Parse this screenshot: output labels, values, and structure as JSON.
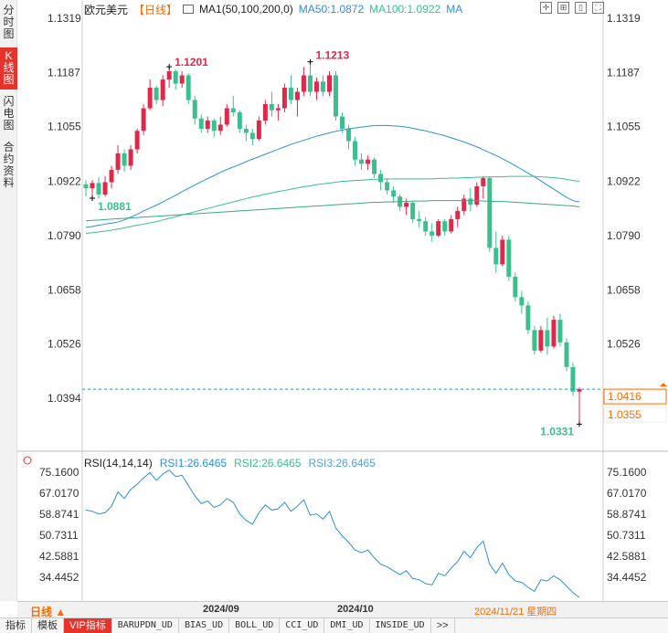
{
  "side_tabs": [
    {
      "label": "分时图",
      "active": false
    },
    {
      "label": "K线图",
      "active": true
    },
    {
      "label": "闪电图",
      "active": false
    },
    {
      "label": "合约资料",
      "active": false
    }
  ],
  "header": {
    "title": "欧元美元",
    "period": "【日线】",
    "ma1": "MA1(50,100,200,0)",
    "ma50": "MA50:1.0872",
    "ma100": "MA100:1.0922",
    "ma_more": "MA"
  },
  "price_axis": {
    "ticks": [
      "1.1319",
      "1.1187",
      "1.1055",
      "1.0922",
      "1.0790",
      "1.0658",
      "1.0526",
      "1.0394"
    ],
    "current_price": "1.0416",
    "cursor_price": "1.0355"
  },
  "annotations": {
    "high1": "1.1201",
    "high2": "1.1213",
    "low_left": "1.0881",
    "low_right": "1.0331"
  },
  "rsi": {
    "name": "RSI(14,14,14)",
    "rsi1": "RSI1:26.6465",
    "rsi2": "RSI2:26.6465",
    "rsi3": "RSI3:26.6465",
    "ticks": [
      "75.1600",
      "67.0170",
      "58.8741",
      "50.7311",
      "42.5881",
      "34.4452"
    ]
  },
  "time_axis": {
    "period": "日线",
    "labels": [
      "2024/09",
      "2024/10"
    ],
    "cursor_date": "2024/11/21 星期四"
  },
  "indicator_tabs": [
    "指标",
    "模板",
    "VIP指标",
    "BARUPDN_UD",
    "BIAS_UD",
    "BOLL_UD",
    "CCI_UD",
    "DMI_UD",
    "INSIDE_UD",
    ">>"
  ],
  "colors": {
    "up": "#e0294a",
    "down": "#3cbf8e",
    "ma50": "#2f8fd8",
    "ma100": "#3cbf8e",
    "accent": "#ff6a00"
  },
  "chart_data": {
    "type": "candlestick",
    "ylim": [
      1.0331,
      1.1319
    ],
    "candles": [
      {
        "o": 1.0915,
        "h": 1.0925,
        "l": 1.0885,
        "c": 1.0905
      },
      {
        "o": 1.0905,
        "h": 1.0925,
        "l": 1.0881,
        "c": 1.0918
      },
      {
        "o": 1.0918,
        "h": 1.0932,
        "l": 1.088,
        "c": 1.089
      },
      {
        "o": 1.089,
        "h": 1.0935,
        "l": 1.0885,
        "c": 1.092
      },
      {
        "o": 1.092,
        "h": 1.096,
        "l": 1.0905,
        "c": 1.095
      },
      {
        "o": 1.095,
        "h": 1.101,
        "l": 1.094,
        "c": 1.099
      },
      {
        "o": 1.099,
        "h": 1.1,
        "l": 1.0945,
        "c": 1.096
      },
      {
        "o": 1.096,
        "h": 1.101,
        "l": 1.095,
        "c": 1.1
      },
      {
        "o": 1.1,
        "h": 1.105,
        "l": 1.099,
        "c": 1.1045
      },
      {
        "o": 1.1045,
        "h": 1.111,
        "l": 1.1035,
        "c": 1.11
      },
      {
        "o": 1.11,
        "h": 1.117,
        "l": 1.1095,
        "c": 1.115
      },
      {
        "o": 1.115,
        "h": 1.1155,
        "l": 1.111,
        "c": 1.112
      },
      {
        "o": 1.112,
        "h": 1.118,
        "l": 1.1105,
        "c": 1.117
      },
      {
        "o": 1.117,
        "h": 1.1201,
        "l": 1.115,
        "c": 1.119
      },
      {
        "o": 1.119,
        "h": 1.1195,
        "l": 1.1145,
        "c": 1.116
      },
      {
        "o": 1.116,
        "h": 1.119,
        "l": 1.115,
        "c": 1.118
      },
      {
        "o": 1.118,
        "h": 1.1185,
        "l": 1.111,
        "c": 1.112
      },
      {
        "o": 1.112,
        "h": 1.113,
        "l": 1.106,
        "c": 1.1075
      },
      {
        "o": 1.1075,
        "h": 1.1085,
        "l": 1.104,
        "c": 1.105
      },
      {
        "o": 1.105,
        "h": 1.108,
        "l": 1.104,
        "c": 1.107
      },
      {
        "o": 1.107,
        "h": 1.1075,
        "l": 1.103,
        "c": 1.1045
      },
      {
        "o": 1.1045,
        "h": 1.108,
        "l": 1.1035,
        "c": 1.106
      },
      {
        "o": 1.106,
        "h": 1.111,
        "l": 1.1055,
        "c": 1.11
      },
      {
        "o": 1.11,
        "h": 1.113,
        "l": 1.108,
        "c": 1.109
      },
      {
        "o": 1.109,
        "h": 1.1095,
        "l": 1.104,
        "c": 1.105
      },
      {
        "o": 1.105,
        "h": 1.106,
        "l": 1.102,
        "c": 1.104
      },
      {
        "o": 1.104,
        "h": 1.105,
        "l": 1.101,
        "c": 1.1025
      },
      {
        "o": 1.1025,
        "h": 1.108,
        "l": 1.102,
        "c": 1.107
      },
      {
        "o": 1.107,
        "h": 1.112,
        "l": 1.106,
        "c": 1.111
      },
      {
        "o": 1.111,
        "h": 1.114,
        "l": 1.108,
        "c": 1.1095
      },
      {
        "o": 1.1095,
        "h": 1.111,
        "l": 1.107,
        "c": 1.11
      },
      {
        "o": 1.11,
        "h": 1.116,
        "l": 1.109,
        "c": 1.115
      },
      {
        "o": 1.115,
        "h": 1.118,
        "l": 1.111,
        "c": 1.112
      },
      {
        "o": 1.112,
        "h": 1.115,
        "l": 1.108,
        "c": 1.114
      },
      {
        "o": 1.114,
        "h": 1.12,
        "l": 1.113,
        "c": 1.118
      },
      {
        "o": 1.118,
        "h": 1.1213,
        "l": 1.113,
        "c": 1.114
      },
      {
        "o": 1.114,
        "h": 1.1175,
        "l": 1.112,
        "c": 1.1165
      },
      {
        "o": 1.1165,
        "h": 1.118,
        "l": 1.113,
        "c": 1.114
      },
      {
        "o": 1.114,
        "h": 1.119,
        "l": 1.113,
        "c": 1.118
      },
      {
        "o": 1.118,
        "h": 1.119,
        "l": 1.107,
        "c": 1.108
      },
      {
        "o": 1.108,
        "h": 1.109,
        "l": 1.104,
        "c": 1.105
      },
      {
        "o": 1.105,
        "h": 1.106,
        "l": 1.1,
        "c": 1.102
      },
      {
        "o": 1.102,
        "h": 1.103,
        "l": 1.096,
        "c": 1.0975
      },
      {
        "o": 1.0975,
        "h": 1.099,
        "l": 1.095,
        "c": 1.0965
      },
      {
        "o": 1.0965,
        "h": 1.0985,
        "l": 1.095,
        "c": 1.0975
      },
      {
        "o": 1.0975,
        "h": 1.098,
        "l": 1.093,
        "c": 1.094
      },
      {
        "o": 1.094,
        "h": 1.095,
        "l": 1.09,
        "c": 1.092
      },
      {
        "o": 1.092,
        "h": 1.093,
        "l": 1.089,
        "c": 1.09
      },
      {
        "o": 1.09,
        "h": 1.091,
        "l": 1.087,
        "c": 1.0885
      },
      {
        "o": 1.0885,
        "h": 1.089,
        "l": 1.085,
        "c": 1.086
      },
      {
        "o": 1.086,
        "h": 1.088,
        "l": 1.084,
        "c": 1.087
      },
      {
        "o": 1.087,
        "h": 1.0875,
        "l": 1.082,
        "c": 1.083
      },
      {
        "o": 1.083,
        "h": 1.085,
        "l": 1.081,
        "c": 1.0825
      },
      {
        "o": 1.0825,
        "h": 1.0835,
        "l": 1.079,
        "c": 1.08
      },
      {
        "o": 1.08,
        "h": 1.082,
        "l": 1.0775,
        "c": 1.079
      },
      {
        "o": 1.079,
        "h": 1.083,
        "l": 1.0785,
        "c": 1.0825
      },
      {
        "o": 1.0825,
        "h": 1.083,
        "l": 1.079,
        "c": 1.08
      },
      {
        "o": 1.08,
        "h": 1.084,
        "l": 1.0795,
        "c": 1.083
      },
      {
        "o": 1.083,
        "h": 1.086,
        "l": 1.081,
        "c": 1.085
      },
      {
        "o": 1.085,
        "h": 1.089,
        "l": 1.084,
        "c": 1.088
      },
      {
        "o": 1.088,
        "h": 1.0905,
        "l": 1.085,
        "c": 1.0865
      },
      {
        "o": 1.0865,
        "h": 1.092,
        "l": 1.086,
        "c": 1.091
      },
      {
        "o": 1.091,
        "h": 1.0935,
        "l": 1.088,
        "c": 1.093
      },
      {
        "o": 1.093,
        "h": 1.0935,
        "l": 1.075,
        "c": 1.076
      },
      {
        "o": 1.076,
        "h": 1.08,
        "l": 1.07,
        "c": 1.072
      },
      {
        "o": 1.072,
        "h": 1.079,
        "l": 1.0715,
        "c": 1.078
      },
      {
        "o": 1.078,
        "h": 1.079,
        "l": 1.068,
        "c": 1.069
      },
      {
        "o": 1.069,
        "h": 1.07,
        "l": 1.063,
        "c": 1.064
      },
      {
        "o": 1.064,
        "h": 1.0655,
        "l": 1.06,
        "c": 1.062
      },
      {
        "o": 1.062,
        "h": 1.063,
        "l": 1.055,
        "c": 1.056
      },
      {
        "o": 1.056,
        "h": 1.057,
        "l": 1.05,
        "c": 1.051
      },
      {
        "o": 1.051,
        "h": 1.057,
        "l": 1.0505,
        "c": 1.056
      },
      {
        "o": 1.056,
        "h": 1.059,
        "l": 1.05,
        "c": 1.052
      },
      {
        "o": 1.052,
        "h": 1.0595,
        "l": 1.0515,
        "c": 1.0585
      },
      {
        "o": 1.0585,
        "h": 1.06,
        "l": 1.052,
        "c": 1.053
      },
      {
        "o": 1.053,
        "h": 1.054,
        "l": 1.046,
        "c": 1.047
      },
      {
        "o": 1.047,
        "h": 1.048,
        "l": 1.04,
        "c": 1.041
      },
      {
        "o": 1.041,
        "h": 1.042,
        "l": 1.0331,
        "c": 1.0416
      }
    ],
    "ma50": [
      1.081,
      1.0812,
      1.0815,
      1.0818,
      1.082,
      1.0823,
      1.0828,
      1.0835,
      1.0842,
      1.085,
      1.0857,
      1.0864,
      1.0872,
      1.088,
      1.0888,
      1.0897,
      1.0905,
      1.0913,
      1.0921,
      1.0929,
      1.0936,
      1.0944,
      1.0951,
      1.0957,
      1.0963,
      1.097,
      1.0976,
      1.0982,
      1.0988,
      1.0994,
      1.1,
      1.1006,
      1.1012,
      1.1017,
      1.1022,
      1.1027,
      1.1032,
      1.1036,
      1.104,
      1.1044,
      1.1047,
      1.105,
      1.1052,
      1.1054,
      1.1056,
      1.1058,
      1.1058,
      1.1058,
      1.1057,
      1.1056,
      1.1054,
      1.1051,
      1.1048,
      1.1045,
      1.1041,
      1.1037,
      1.1033,
      1.1028,
      1.1023,
      1.1018,
      1.1012,
      1.1006,
      1.0999,
      1.0992,
      1.0985,
      1.0977,
      1.0969,
      1.096,
      1.0951,
      1.0942,
      1.0933,
      1.0923,
      1.0913,
      1.0903,
      1.0893,
      1.0883,
      1.0875,
      1.0872
    ],
    "ma100": [
      1.0795,
      1.0797,
      1.0799,
      1.0801,
      1.0803,
      1.0806,
      1.0809,
      1.0812,
      1.0815,
      1.0818,
      1.0821,
      1.0824,
      1.0828,
      1.0832,
      1.0836,
      1.084,
      1.0844,
      1.0848,
      1.0852,
      1.0856,
      1.086,
      1.0864,
      1.0868,
      1.0872,
      1.0876,
      1.088,
      1.0884,
      1.0887,
      1.0891,
      1.0894,
      1.0897,
      1.09,
      1.0903,
      1.0906,
      1.0909,
      1.0911,
      1.0914,
      1.0916,
      1.0918,
      1.092,
      1.0922,
      1.0923,
      1.0924,
      1.0925,
      1.0926,
      1.0927,
      1.0927,
      1.0928,
      1.0928,
      1.0928,
      1.0928,
      1.0928,
      1.0928,
      1.0928,
      1.0928,
      1.0929,
      1.0929,
      1.093,
      1.093,
      1.0931,
      1.0931,
      1.0932,
      1.0932,
      1.0933,
      1.0933,
      1.0933,
      1.0934,
      1.0934,
      1.0934,
      1.0934,
      1.0934,
      1.0933,
      1.0932,
      1.0931,
      1.0929,
      1.0927,
      1.0924,
      1.0922
    ],
    "ma200": [
      1.0826,
      1.0827,
      1.0828,
      1.0829,
      1.083,
      1.0831,
      1.0832,
      1.0833,
      1.0834,
      1.0835,
      1.0836,
      1.0837,
      1.0838,
      1.0839,
      1.084,
      1.0841,
      1.0842,
      1.0843,
      1.0844,
      1.0845,
      1.0846,
      1.0847,
      1.0848,
      1.0849,
      1.085,
      1.0851,
      1.0852,
      1.0853,
      1.0854,
      1.0855,
      1.0856,
      1.0857,
      1.0858,
      1.0859,
      1.086,
      1.0861,
      1.0862,
      1.0863,
      1.0864,
      1.0865,
      1.0866,
      1.0867,
      1.0868,
      1.0869,
      1.087,
      1.0871,
      1.0871,
      1.0872,
      1.0872,
      1.0873,
      1.0873,
      1.0874,
      1.0874,
      1.0874,
      1.0875,
      1.0875,
      1.0875,
      1.0875,
      1.0875,
      1.0875,
      1.0875,
      1.0875,
      1.0874,
      1.0874,
      1.0873,
      1.0873,
      1.0872,
      1.0871,
      1.087,
      1.0869,
      1.0868,
      1.0867,
      1.0866,
      1.0865,
      1.0864,
      1.0863,
      1.0862,
      1.086
    ],
    "rsi": [
      60.5,
      60.0,
      59.0,
      59.5,
      62.0,
      67.5,
      65.0,
      68.5,
      70.5,
      73.0,
      75.0,
      72.0,
      74.5,
      76.0,
      73.5,
      74.0,
      70.0,
      66.0,
      63.0,
      64.0,
      61.5,
      62.5,
      65.0,
      63.5,
      59.0,
      56.5,
      55.0,
      59.5,
      62.5,
      60.5,
      61.0,
      63.5,
      60.0,
      62.0,
      64.5,
      58.5,
      59.0,
      57.0,
      60.0,
      53.5,
      50.5,
      48.0,
      45.0,
      44.0,
      45.0,
      42.0,
      39.5,
      38.5,
      37.0,
      35.5,
      37.0,
      34.0,
      33.5,
      32.0,
      31.5,
      36.0,
      35.0,
      38.0,
      40.5,
      44.5,
      42.0,
      46.0,
      48.5,
      39.5,
      36.0,
      40.0,
      35.5,
      33.0,
      32.5,
      30.5,
      29.0,
      33.5,
      33.0,
      35.0,
      33.5,
      31.0,
      28.5,
      26.6
    ]
  }
}
